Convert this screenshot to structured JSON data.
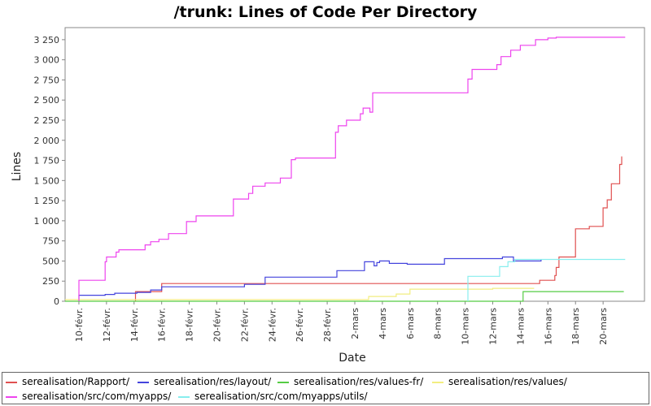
{
  "chart_data": {
    "type": "line",
    "title": "/trunk: Lines of Code Per Directory",
    "xlabel": "Date",
    "ylabel": "Lines",
    "x_ticks": [
      "10-févr.",
      "12-févr.",
      "14-févr.",
      "16-févr.",
      "18-févr.",
      "20-févr.",
      "22-févr.",
      "24-févr.",
      "26-févr.",
      "28-févr.",
      "2-mars",
      "4-mars",
      "6-mars",
      "8-mars",
      "10-mars",
      "12-mars",
      "14-mars",
      "16-mars",
      "18-mars",
      "20-mars"
    ],
    "y_ticks": [
      "0",
      "250",
      "500",
      "750",
      "1 000",
      "1 250",
      "1 500",
      "1 750",
      "2 000",
      "2 250",
      "2 500",
      "2 750",
      "3 000",
      "3 250"
    ],
    "x_axis_start": "9-févr.",
    "xlim_days": [
      0,
      42
    ],
    "ylim": [
      0,
      3400
    ],
    "grid": false,
    "legend_position": "bottom",
    "series": [
      {
        "name": "serealisation/Rapport/",
        "color": "#e05050",
        "points": [
          [
            5.1,
            0
          ],
          [
            5.1,
            120
          ],
          [
            7,
            120
          ],
          [
            7,
            220
          ],
          [
            34.4,
            220
          ],
          [
            34.4,
            260
          ],
          [
            35.5,
            260
          ],
          [
            35.5,
            320
          ],
          [
            35.6,
            320
          ],
          [
            35.6,
            420
          ],
          [
            35.8,
            420
          ],
          [
            35.8,
            550
          ],
          [
            37,
            550
          ],
          [
            37,
            900
          ],
          [
            38,
            900
          ],
          [
            38,
            930
          ],
          [
            39,
            930
          ],
          [
            39,
            1160
          ],
          [
            39.3,
            1160
          ],
          [
            39.3,
            1260
          ],
          [
            39.6,
            1260
          ],
          [
            39.6,
            1460
          ],
          [
            40.2,
            1460
          ],
          [
            40.2,
            1700
          ],
          [
            40.35,
            1700
          ],
          [
            40.35,
            1800
          ]
        ]
      },
      {
        "name": "serealisation/res/layout/",
        "color": "#4444dd",
        "points": [
          [
            1,
            0
          ],
          [
            1,
            75
          ],
          [
            2.9,
            75
          ],
          [
            2.9,
            85
          ],
          [
            3.6,
            85
          ],
          [
            3.6,
            100
          ],
          [
            5.2,
            100
          ],
          [
            5.2,
            110
          ],
          [
            6.2,
            110
          ],
          [
            6.2,
            140
          ],
          [
            7,
            140
          ],
          [
            7,
            180
          ],
          [
            13,
            180
          ],
          [
            13,
            210
          ],
          [
            14.5,
            210
          ],
          [
            14.5,
            300
          ],
          [
            19.7,
            300
          ],
          [
            19.7,
            380
          ],
          [
            21.7,
            380
          ],
          [
            21.7,
            490
          ],
          [
            22.4,
            490
          ],
          [
            22.4,
            440
          ],
          [
            22.6,
            440
          ],
          [
            22.6,
            480
          ],
          [
            22.8,
            480
          ],
          [
            22.8,
            500
          ],
          [
            23.5,
            500
          ],
          [
            23.5,
            470
          ],
          [
            24.8,
            470
          ],
          [
            24.8,
            460
          ],
          [
            27.5,
            460
          ],
          [
            27.5,
            530
          ],
          [
            31.7,
            530
          ],
          [
            31.7,
            550
          ],
          [
            32.5,
            550
          ],
          [
            32.5,
            500
          ],
          [
            34.5,
            500
          ],
          [
            34.5,
            520
          ]
        ]
      },
      {
        "name": "serealisation/res/values-fr/",
        "color": "#55cc44",
        "points": [
          [
            0,
            0
          ],
          [
            33.2,
            0
          ],
          [
            33.2,
            120
          ],
          [
            40.5,
            120
          ]
        ]
      },
      {
        "name": "serealisation/res/values/",
        "color": "#f2ee80",
        "points": [
          [
            0,
            20
          ],
          [
            22,
            20
          ],
          [
            22,
            60
          ],
          [
            24,
            60
          ],
          [
            24,
            90
          ],
          [
            25,
            90
          ],
          [
            25,
            150
          ],
          [
            31,
            150
          ],
          [
            31,
            160
          ],
          [
            34,
            160
          ]
        ]
      },
      {
        "name": "serealisation/src/com/myapps/",
        "color": "#ee44ee",
        "points": [
          [
            1,
            0
          ],
          [
            1,
            260
          ],
          [
            2.9,
            260
          ],
          [
            2.9,
            490
          ],
          [
            3,
            490
          ],
          [
            3,
            550
          ],
          [
            3.7,
            550
          ],
          [
            3.7,
            610
          ],
          [
            3.9,
            610
          ],
          [
            3.9,
            640
          ],
          [
            5.8,
            640
          ],
          [
            5.8,
            700
          ],
          [
            6.2,
            700
          ],
          [
            6.2,
            740
          ],
          [
            6.8,
            740
          ],
          [
            6.8,
            770
          ],
          [
            7.5,
            770
          ],
          [
            7.5,
            840
          ],
          [
            8.8,
            840
          ],
          [
            8.8,
            990
          ],
          [
            9.5,
            990
          ],
          [
            9.5,
            1060
          ],
          [
            12.2,
            1060
          ],
          [
            12.2,
            1270
          ],
          [
            13.3,
            1270
          ],
          [
            13.3,
            1340
          ],
          [
            13.6,
            1340
          ],
          [
            13.6,
            1430
          ],
          [
            14.5,
            1430
          ],
          [
            14.5,
            1470
          ],
          [
            15.6,
            1470
          ],
          [
            15.6,
            1530
          ],
          [
            16.4,
            1530
          ],
          [
            16.4,
            1760
          ],
          [
            16.7,
            1760
          ],
          [
            16.7,
            1780
          ],
          [
            19.6,
            1780
          ],
          [
            19.6,
            2100
          ],
          [
            19.8,
            2100
          ],
          [
            19.8,
            2180
          ],
          [
            20.4,
            2180
          ],
          [
            20.4,
            2250
          ],
          [
            21.4,
            2250
          ],
          [
            21.4,
            2330
          ],
          [
            21.6,
            2330
          ],
          [
            21.6,
            2400
          ],
          [
            22.1,
            2400
          ],
          [
            22.1,
            2350
          ],
          [
            22.3,
            2350
          ],
          [
            22.3,
            2590
          ],
          [
            29.2,
            2590
          ],
          [
            29.2,
            2760
          ],
          [
            29.5,
            2760
          ],
          [
            29.5,
            2880
          ],
          [
            31.3,
            2880
          ],
          [
            31.3,
            2940
          ],
          [
            31.6,
            2940
          ],
          [
            31.6,
            3040
          ],
          [
            32.3,
            3040
          ],
          [
            32.3,
            3120
          ],
          [
            33,
            3120
          ],
          [
            33,
            3180
          ],
          [
            34.1,
            3180
          ],
          [
            34.1,
            3250
          ],
          [
            35,
            3250
          ],
          [
            35,
            3270
          ],
          [
            35.6,
            3270
          ],
          [
            35.6,
            3280
          ],
          [
            40.6,
            3280
          ]
        ]
      },
      {
        "name": "serealisation/src/com/myapps/utils/",
        "color": "#88eeee",
        "points": [
          [
            29.2,
            0
          ],
          [
            29.2,
            310
          ],
          [
            31.5,
            310
          ],
          [
            31.5,
            430
          ],
          [
            32.1,
            430
          ],
          [
            32.1,
            490
          ],
          [
            32.6,
            490
          ],
          [
            32.6,
            520
          ],
          [
            40.6,
            520
          ]
        ]
      }
    ]
  }
}
